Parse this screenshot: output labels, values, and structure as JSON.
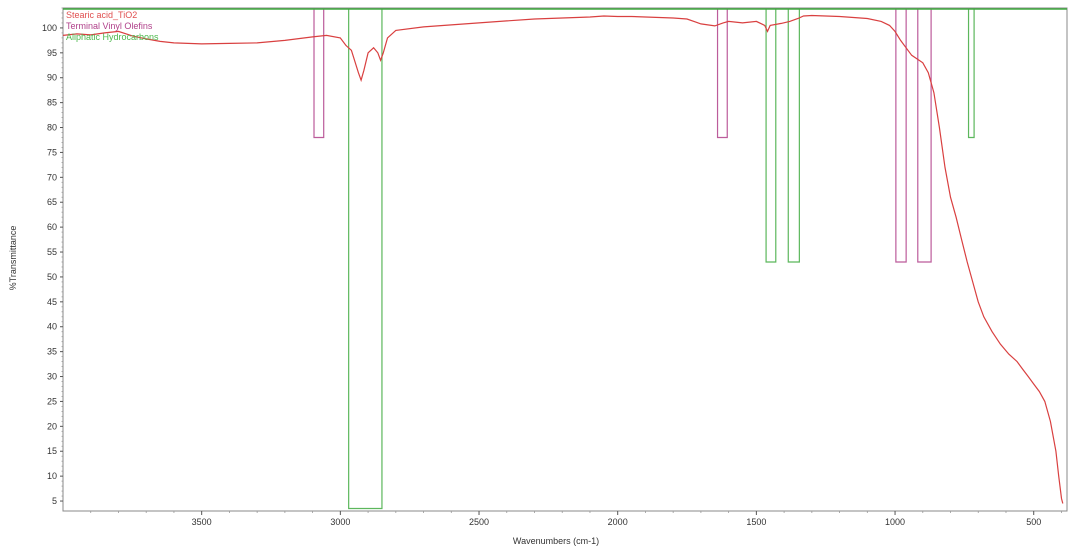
{
  "chart_data": {
    "type": "line",
    "title": "",
    "xlabel": "Wavenumbers (cm-1)",
    "ylabel": "%Transmittance",
    "xlim": [
      4000,
      380
    ],
    "ylim": [
      3,
      104
    ],
    "x_reversed": true,
    "grid": false,
    "legend_position": "top-left",
    "x_ticks": [
      3500,
      3000,
      2500,
      2000,
      1500,
      1000,
      500
    ],
    "y_ticks": [
      5,
      10,
      15,
      20,
      25,
      30,
      35,
      40,
      45,
      50,
      55,
      60,
      65,
      70,
      75,
      80,
      85,
      90,
      95,
      100
    ],
    "legend": [
      {
        "label": "Stearic acid_TiO2",
        "color": "#e05050"
      },
      {
        "label": "Terminal Vinyl Olefins",
        "color": "#b0408a"
      },
      {
        "label": "Aliphatic Hydrocarbons",
        "color": "#4cb84c"
      }
    ],
    "spectrum": {
      "name": "Stearic acid_TiO2",
      "color": "#d94040",
      "points": [
        [
          4000,
          98.5
        ],
        [
          3950,
          98.8
        ],
        [
          3900,
          98.6
        ],
        [
          3850,
          99.0
        ],
        [
          3800,
          99.3
        ],
        [
          3750,
          98.4
        ],
        [
          3700,
          97.8
        ],
        [
          3650,
          97.3
        ],
        [
          3600,
          97.0
        ],
        [
          3500,
          96.8
        ],
        [
          3400,
          96.9
        ],
        [
          3300,
          97.0
        ],
        [
          3200,
          97.5
        ],
        [
          3100,
          98.2
        ],
        [
          3050,
          98.5
        ],
        [
          3000,
          98.0
        ],
        [
          2980,
          96.5
        ],
        [
          2960,
          95.5
        ],
        [
          2935,
          91.0
        ],
        [
          2925,
          89.5
        ],
        [
          2915,
          91.5
        ],
        [
          2900,
          95.0
        ],
        [
          2880,
          96.0
        ],
        [
          2865,
          95.0
        ],
        [
          2855,
          93.5
        ],
        [
          2845,
          95.0
        ],
        [
          2830,
          98.0
        ],
        [
          2800,
          99.5
        ],
        [
          2700,
          100.2
        ],
        [
          2600,
          100.6
        ],
        [
          2500,
          101.0
        ],
        [
          2400,
          101.4
        ],
        [
          2300,
          101.8
        ],
        [
          2200,
          102.0
        ],
        [
          2100,
          102.2
        ],
        [
          2050,
          102.4
        ],
        [
          2000,
          102.3
        ],
        [
          1950,
          102.3
        ],
        [
          1900,
          102.2
        ],
        [
          1800,
          102.0
        ],
        [
          1750,
          101.8
        ],
        [
          1720,
          101.2
        ],
        [
          1700,
          100.8
        ],
        [
          1650,
          100.4
        ],
        [
          1620,
          101.0
        ],
        [
          1600,
          101.3
        ],
        [
          1550,
          101.0
        ],
        [
          1500,
          101.3
        ],
        [
          1470,
          100.5
        ],
        [
          1460,
          99.3
        ],
        [
          1450,
          100.5
        ],
        [
          1410,
          100.9
        ],
        [
          1380,
          101.3
        ],
        [
          1350,
          101.9
        ],
        [
          1330,
          102.4
        ],
        [
          1300,
          102.5
        ],
        [
          1200,
          102.3
        ],
        [
          1100,
          101.9
        ],
        [
          1050,
          101.3
        ],
        [
          1020,
          100.5
        ],
        [
          1000,
          99.3
        ],
        [
          980,
          97.5
        ],
        [
          960,
          96.0
        ],
        [
          940,
          94.5
        ],
        [
          900,
          93.0
        ],
        [
          880,
          91.0
        ],
        [
          860,
          87.0
        ],
        [
          840,
          80.0
        ],
        [
          820,
          72.0
        ],
        [
          800,
          66.0
        ],
        [
          780,
          62.0
        ],
        [
          760,
          57.5
        ],
        [
          740,
          53.0
        ],
        [
          720,
          49.0
        ],
        [
          700,
          45.0
        ],
        [
          680,
          42.0
        ],
        [
          650,
          39.0
        ],
        [
          620,
          36.5
        ],
        [
          590,
          34.5
        ],
        [
          560,
          33.0
        ],
        [
          540,
          31.5
        ],
        [
          520,
          30.0
        ],
        [
          500,
          28.5
        ],
        [
          480,
          27.0
        ],
        [
          460,
          25.0
        ],
        [
          440,
          21.0
        ],
        [
          420,
          15.0
        ],
        [
          410,
          10.0
        ],
        [
          400,
          5.5
        ],
        [
          395,
          4.5
        ]
      ]
    },
    "bands": [
      {
        "group": "Terminal Vinyl Olefins",
        "color": "#b0408a",
        "x_start": 3095,
        "x_end": 3060,
        "min_y": 78
      },
      {
        "group": "Terminal Vinyl Olefins",
        "color": "#b0408a",
        "x_start": 1640,
        "x_end": 1605,
        "min_y": 78
      },
      {
        "group": "Terminal Vinyl Olefins",
        "color": "#b0408a",
        "x_start": 997,
        "x_end": 960,
        "min_y": 53
      },
      {
        "group": "Terminal Vinyl Olefins",
        "color": "#b0408a",
        "x_start": 918,
        "x_end": 870,
        "min_y": 53
      },
      {
        "group": "Aliphatic Hydrocarbons",
        "color": "#3faa3f",
        "x_start": 2970,
        "x_end": 2850,
        "min_y": 3.5
      },
      {
        "group": "Aliphatic Hydrocarbons",
        "color": "#3faa3f",
        "x_start": 1465,
        "x_end": 1430,
        "min_y": 53
      },
      {
        "group": "Aliphatic Hydrocarbons",
        "color": "#3faa3f",
        "x_start": 1385,
        "x_end": 1345,
        "min_y": 53
      },
      {
        "group": "Aliphatic Hydrocarbons",
        "color": "#3faa3f",
        "x_start": 735,
        "x_end": 715,
        "min_y": 78
      }
    ]
  }
}
